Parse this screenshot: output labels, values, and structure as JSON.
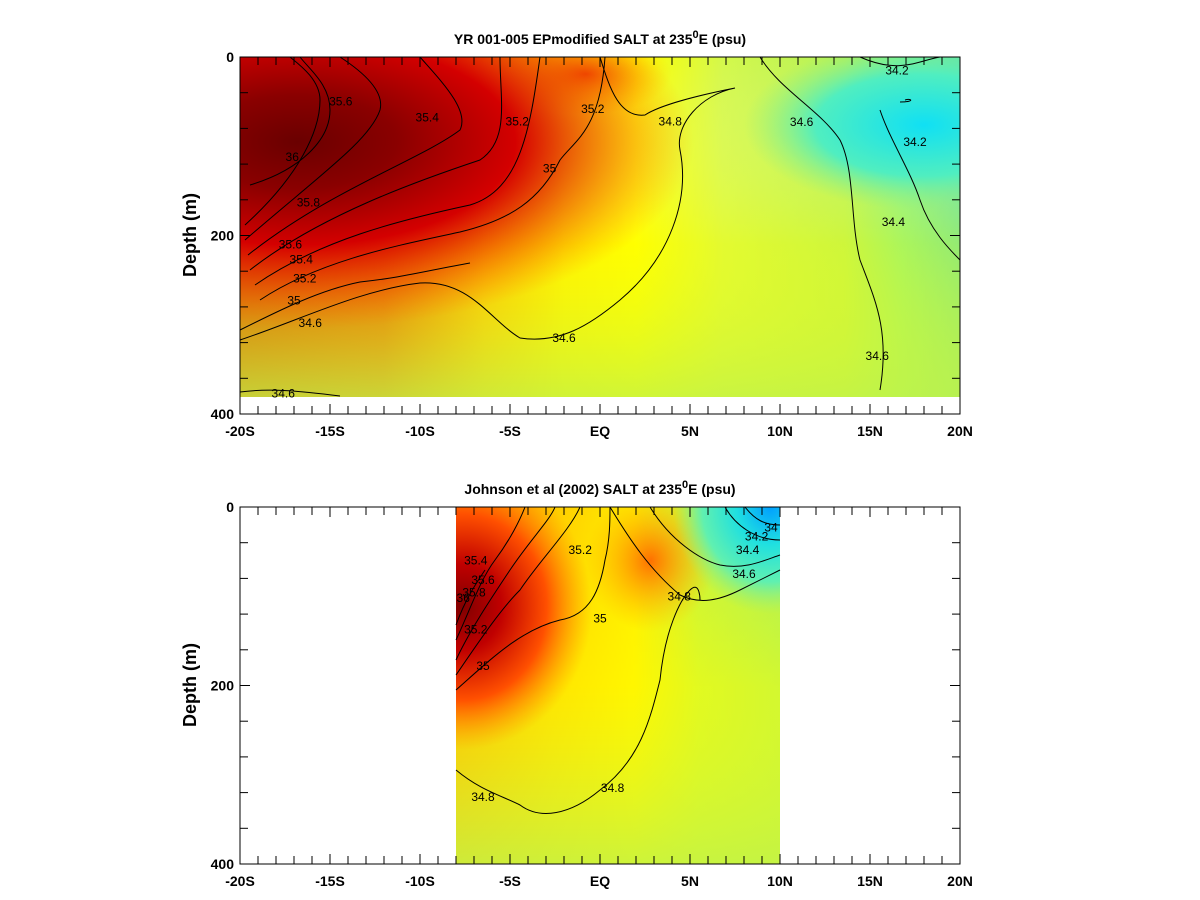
{
  "chart_data": [
    {
      "type": "heatmap",
      "title_main": "YR 001-005 EPmodified SALT at 235",
      "title_sup": "0",
      "title_tail": "E (psu)",
      "ylabel": "Depth (m)",
      "xlabel": "",
      "x_ticks": [
        "-20S",
        "-15S",
        "-10S",
        "-5S",
        "EQ",
        "5N",
        "10N",
        "15N",
        "20N"
      ],
      "x_tick_values": [
        -20,
        -15,
        -10,
        -5,
        0,
        5,
        10,
        15,
        20
      ],
      "y_ticks": [
        "0",
        "200",
        "400"
      ],
      "y_tick_values": [
        0,
        200,
        400
      ],
      "xlim": [
        -20,
        20
      ],
      "ylim": [
        400,
        0
      ],
      "data_extent": {
        "x": [
          -20,
          20
        ],
        "depth": [
          0,
          380
        ]
      },
      "colorscale": "jet-like, low salinity cyan to high salinity dark red",
      "grid": false,
      "legend": "none",
      "contour_labels": [
        {
          "text": "35.6",
          "x": -14.4,
          "depth": 50
        },
        {
          "text": "35.4",
          "x": -9.6,
          "depth": 68
        },
        {
          "text": "35.2",
          "x": -4.6,
          "depth": 72
        },
        {
          "text": "35.2",
          "x": -0.4,
          "depth": 58
        },
        {
          "text": "34.8",
          "x": 3.9,
          "depth": 72
        },
        {
          "text": "34.6",
          "x": 11.2,
          "depth": 73
        },
        {
          "text": "34.2",
          "x": 16.5,
          "depth": 15
        },
        {
          "text": "34.2",
          "x": 17.5,
          "depth": 95
        },
        {
          "text": "36",
          "x": -17.1,
          "depth": 112
        },
        {
          "text": "35",
          "x": -2.8,
          "depth": 125
        },
        {
          "text": "35.8",
          "x": -16.2,
          "depth": 163
        },
        {
          "text": "34.4",
          "x": 16.3,
          "depth": 185
        },
        {
          "text": "35.6",
          "x": -17.2,
          "depth": 210
        },
        {
          "text": "35.4",
          "x": -16.6,
          "depth": 227
        },
        {
          "text": "35.2",
          "x": -16.4,
          "depth": 248
        },
        {
          "text": "35",
          "x": -17.0,
          "depth": 273
        },
        {
          "text": "34.6",
          "x": -16.1,
          "depth": 298
        },
        {
          "text": "34.6",
          "x": -2.0,
          "depth": 315
        },
        {
          "text": "34.6",
          "x": 15.4,
          "depth": 335
        },
        {
          "text": "34.6",
          "x": -17.6,
          "depth": 377
        }
      ]
    },
    {
      "type": "heatmap",
      "title_main": "Johnson et al (2002) SALT at 235",
      "title_sup": "0",
      "title_tail": "E (psu)",
      "ylabel": "Depth (m)",
      "xlabel": "",
      "x_ticks": [
        "-20S",
        "-15S",
        "-10S",
        "-5S",
        "EQ",
        "5N",
        "10N",
        "15N",
        "20N"
      ],
      "x_tick_values": [
        -20,
        -15,
        -10,
        -5,
        0,
        5,
        10,
        15,
        20
      ],
      "y_ticks": [
        "0",
        "200",
        "400"
      ],
      "y_tick_values": [
        0,
        200,
        400
      ],
      "xlim": [
        -20,
        20
      ],
      "ylim": [
        400,
        0
      ],
      "data_extent": {
        "x": [
          -8,
          10
        ],
        "depth": [
          0,
          400
        ]
      },
      "colorscale": "jet-like, low salinity cyan to high salinity dark red",
      "grid": false,
      "legend": "none",
      "contour_labels": [
        {
          "text": "35.4",
          "x": -6.9,
          "depth": 60
        },
        {
          "text": "35.2",
          "x": -1.1,
          "depth": 48
        },
        {
          "text": "34.2",
          "x": 8.7,
          "depth": 33
        },
        {
          "text": "34",
          "x": 9.5,
          "depth": 23
        },
        {
          "text": "34.4",
          "x": 8.2,
          "depth": 48
        },
        {
          "text": "34.6",
          "x": 8.0,
          "depth": 75
        },
        {
          "text": "35.6",
          "x": -6.5,
          "depth": 82
        },
        {
          "text": "35.8",
          "x": -7.0,
          "depth": 96
        },
        {
          "text": "36",
          "x": -7.6,
          "depth": 102
        },
        {
          "text": "34.8",
          "x": 4.4,
          "depth": 100
        },
        {
          "text": "35",
          "x": 0.0,
          "depth": 125
        },
        {
          "text": "35.2",
          "x": -6.9,
          "depth": 137
        },
        {
          "text": "35",
          "x": -6.5,
          "depth": 178
        },
        {
          "text": "34.8",
          "x": -6.5,
          "depth": 325
        },
        {
          "text": "34.8",
          "x": 0.7,
          "depth": 315
        }
      ]
    }
  ]
}
